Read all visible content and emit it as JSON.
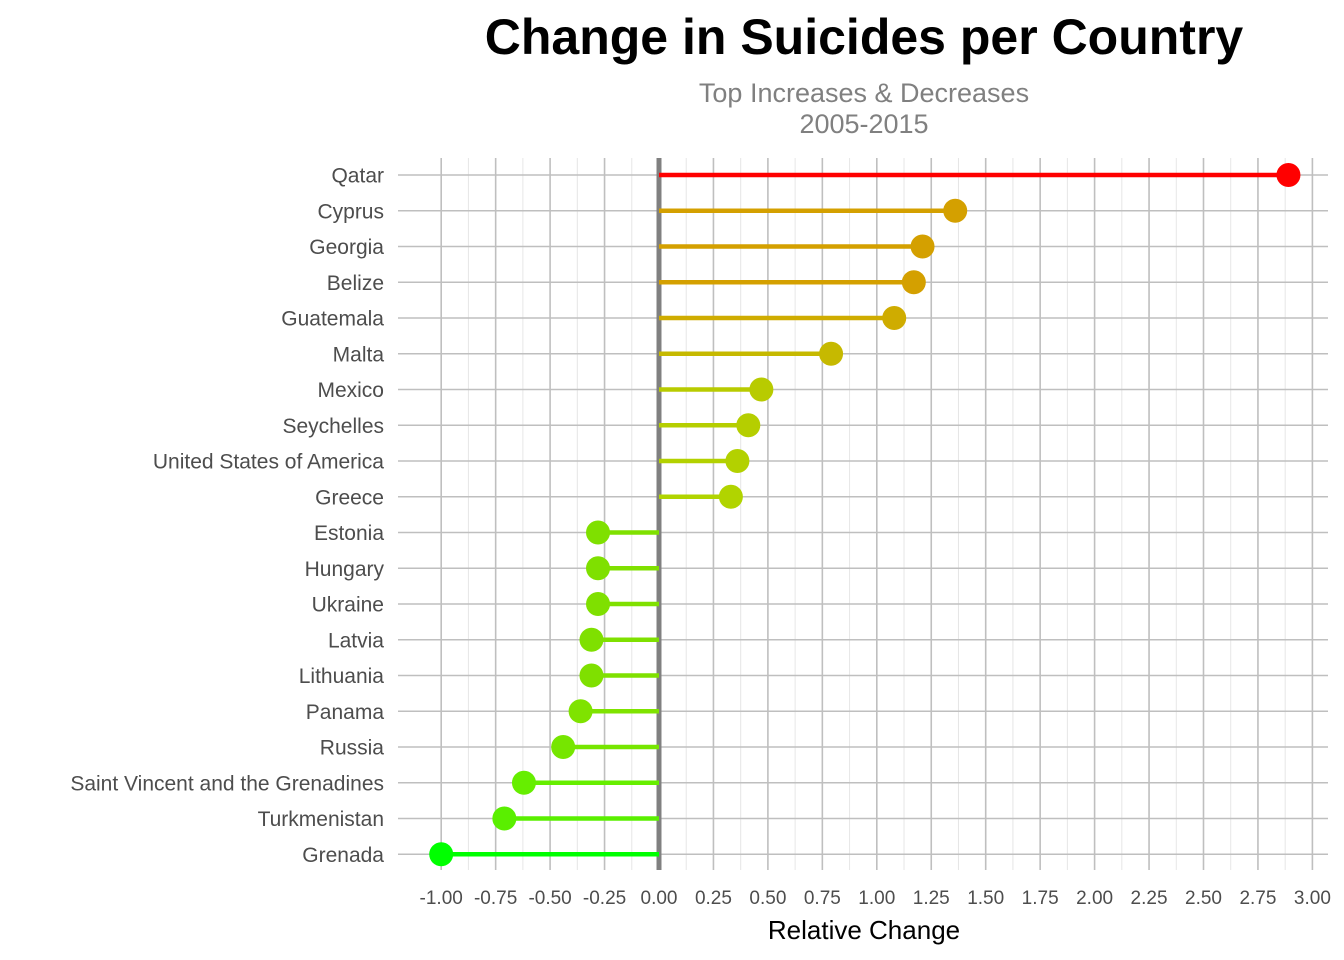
{
  "chart_data": {
    "type": "lollipop",
    "title": "Change in Suicides per Country",
    "subtitle_lines": [
      "Top Increases & Decreases",
      "2005-2015"
    ],
    "xlabel": "Relative Change",
    "ylabel": "",
    "xlim": [
      -1.0,
      3.0
    ],
    "x_ticks": [
      -1.0,
      -0.75,
      -0.5,
      -0.25,
      0.0,
      0.25,
      0.5,
      0.75,
      1.0,
      1.25,
      1.5,
      1.75,
      2.0,
      2.25,
      2.5,
      2.75,
      3.0
    ],
    "x_tick_labels": [
      "-1.00",
      "-0.75",
      "-0.50",
      "-0.25",
      "0.00",
      "0.25",
      "0.50",
      "0.75",
      "1.00",
      "1.25",
      "1.50",
      "1.75",
      "2.00",
      "2.25",
      "2.50",
      "2.75",
      "3.00"
    ],
    "grid": true,
    "legend": "none",
    "color_low": "#00ff00",
    "color_high": "#ff0000",
    "zero_line_color": "#808080",
    "categories": [
      "Qatar",
      "Cyprus",
      "Georgia",
      "Belize",
      "Guatemala",
      "Malta",
      "Mexico",
      "Seychelles",
      "United States of America",
      "Greece",
      "Estonia",
      "Hungary",
      "Ukraine",
      "Latvia",
      "Lithuania",
      "Panama",
      "Russia",
      "Saint Vincent and the Grenadines",
      "Turkmenistan",
      "Grenada"
    ],
    "values": [
      2.89,
      1.36,
      1.21,
      1.17,
      1.08,
      0.79,
      0.47,
      0.41,
      0.36,
      0.33,
      -0.28,
      -0.28,
      -0.28,
      -0.31,
      -0.31,
      -0.36,
      -0.44,
      -0.62,
      -0.71,
      -1.0
    ],
    "colors": [
      "#ff0000",
      "#d4a000",
      "#d4a000",
      "#d4a000",
      "#cfac00",
      "#c6b900",
      "#b8cb00",
      "#b5ce00",
      "#b3d100",
      "#b1d400",
      "#7fe000",
      "#7fe000",
      "#7fe000",
      "#7fe000",
      "#7fe000",
      "#7fe300",
      "#76e600",
      "#66ee00",
      "#5aef00",
      "#00ff00"
    ]
  }
}
